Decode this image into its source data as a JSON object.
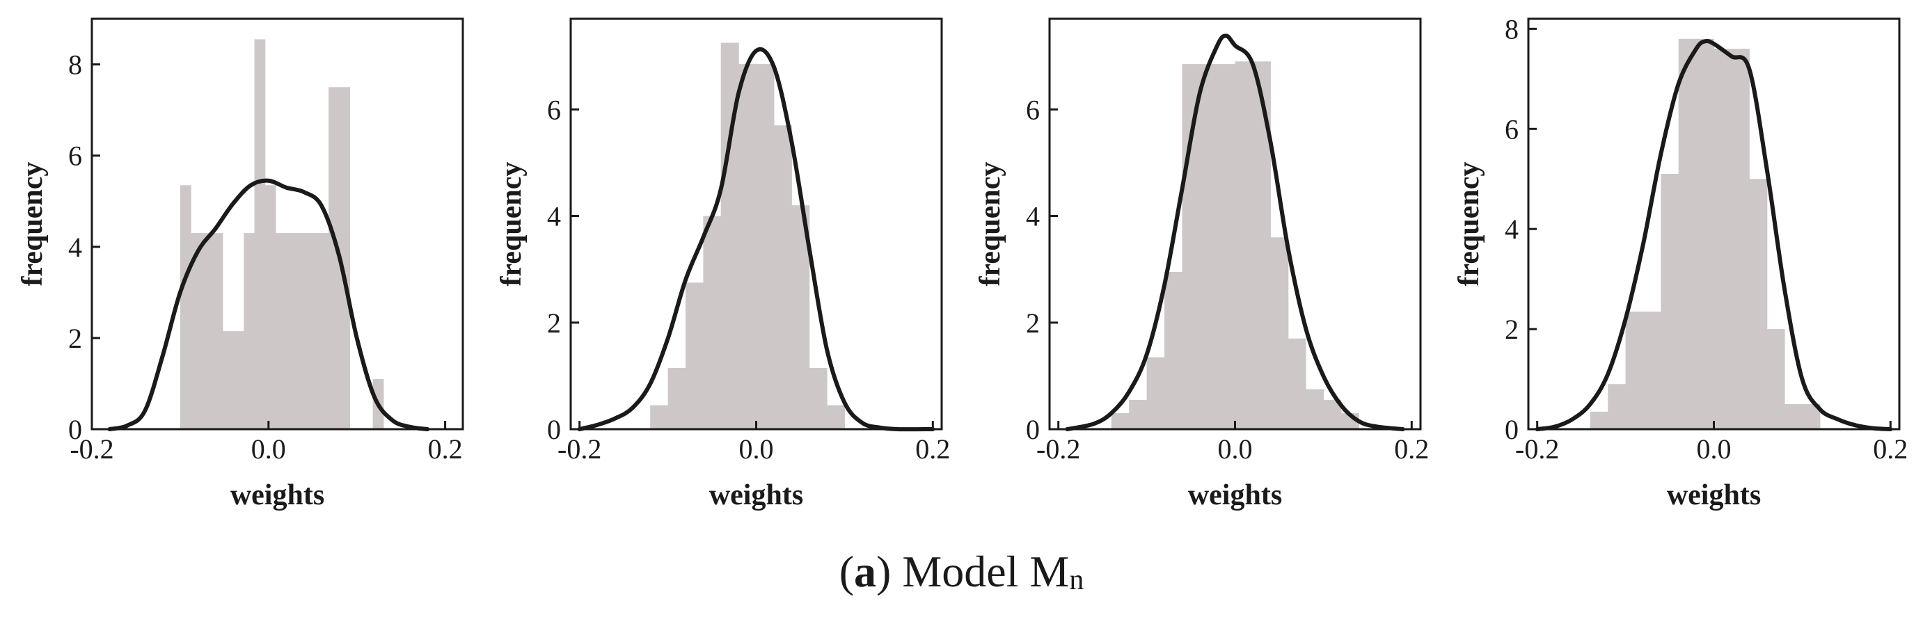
{
  "caption": {
    "paren_open": "(",
    "letter": "a",
    "paren_close": ")",
    "text": " Model M",
    "subscript": "n"
  },
  "colors": {
    "bar": "#cdc8c7",
    "curve": "#1a1a1a",
    "axis": "#1a1a1a"
  },
  "chart_data": [
    {
      "type": "bar",
      "title": "",
      "xlabel": "weights",
      "ylabel": "frequency",
      "xlim": [
        -0.2,
        0.22
      ],
      "ylim": [
        0,
        9
      ],
      "xticks": [
        -0.2,
        0.0,
        0.2
      ],
      "xtick_labels": [
        "-0.2",
        "0.0",
        "0.2"
      ],
      "yticks": [
        0,
        2,
        4,
        6,
        8
      ],
      "ytick_labels": [
        "0",
        "2",
        "4",
        "6",
        "8"
      ],
      "bins": [
        {
          "x0": -0.1,
          "x1": -0.088,
          "h": 5.35
        },
        {
          "x0": -0.088,
          "x1": -0.076,
          "h": 4.3
        },
        {
          "x0": -0.076,
          "x1": -0.064,
          "h": 4.3
        },
        {
          "x0": -0.064,
          "x1": -0.052,
          "h": 4.3
        },
        {
          "x0": -0.052,
          "x1": -0.04,
          "h": 2.15
        },
        {
          "x0": -0.04,
          "x1": -0.028,
          "h": 2.15
        },
        {
          "x0": -0.028,
          "x1": -0.016,
          "h": 4.3
        },
        {
          "x0": -0.016,
          "x1": -0.004,
          "h": 8.55
        },
        {
          "x0": -0.004,
          "x1": 0.008,
          "h": 5.35
        },
        {
          "x0": 0.008,
          "x1": 0.02,
          "h": 4.3
        },
        {
          "x0": 0.02,
          "x1": 0.032,
          "h": 4.3
        },
        {
          "x0": 0.032,
          "x1": 0.044,
          "h": 4.3
        },
        {
          "x0": 0.044,
          "x1": 0.056,
          "h": 4.3
        },
        {
          "x0": 0.056,
          "x1": 0.068,
          "h": 4.3
        },
        {
          "x0": 0.068,
          "x1": 0.08,
          "h": 7.5
        },
        {
          "x0": 0.08,
          "x1": 0.092,
          "h": 7.5
        },
        {
          "x0": 0.118,
          "x1": 0.13,
          "h": 1.1
        }
      ],
      "kde": [
        [
          -0.18,
          0
        ],
        [
          -0.16,
          0.08
        ],
        [
          -0.14,
          0.4
        ],
        [
          -0.12,
          1.6
        ],
        [
          -0.1,
          3.0
        ],
        [
          -0.08,
          3.9
        ],
        [
          -0.06,
          4.4
        ],
        [
          -0.04,
          4.95
        ],
        [
          -0.02,
          5.35
        ],
        [
          0.0,
          5.45
        ],
        [
          0.02,
          5.3
        ],
        [
          0.04,
          5.2
        ],
        [
          0.06,
          4.9
        ],
        [
          0.08,
          3.8
        ],
        [
          0.1,
          2.0
        ],
        [
          0.12,
          0.7
        ],
        [
          0.14,
          0.2
        ],
        [
          0.16,
          0.05
        ],
        [
          0.18,
          0
        ]
      ]
    },
    {
      "type": "bar",
      "title": "",
      "xlabel": "weights",
      "ylabel": "frequency",
      "xlim": [
        -0.21,
        0.21
      ],
      "ylim": [
        0,
        7.7
      ],
      "xticks": [
        -0.2,
        0.0,
        0.2
      ],
      "xtick_labels": [
        "-0.2",
        "0.0",
        "0.2"
      ],
      "yticks": [
        0,
        2,
        4,
        6
      ],
      "ytick_labels": [
        "0",
        "2",
        "4",
        "6"
      ],
      "bins": [
        {
          "x0": -0.12,
          "x1": -0.1,
          "h": 0.45
        },
        {
          "x0": -0.1,
          "x1": -0.08,
          "h": 1.15
        },
        {
          "x0": -0.08,
          "x1": -0.06,
          "h": 2.75
        },
        {
          "x0": -0.06,
          "x1": -0.04,
          "h": 4.0
        },
        {
          "x0": -0.04,
          "x1": -0.02,
          "h": 7.25
        },
        {
          "x0": -0.02,
          "x1": 0.0,
          "h": 6.85
        },
        {
          "x0": 0.0,
          "x1": 0.02,
          "h": 6.85
        },
        {
          "x0": 0.02,
          "x1": 0.04,
          "h": 5.7
        },
        {
          "x0": 0.04,
          "x1": 0.06,
          "h": 4.2
        },
        {
          "x0": 0.06,
          "x1": 0.08,
          "h": 1.15
        },
        {
          "x0": 0.08,
          "x1": 0.1,
          "h": 0.45
        }
      ],
      "kde": [
        [
          -0.2,
          0
        ],
        [
          -0.18,
          0.08
        ],
        [
          -0.16,
          0.2
        ],
        [
          -0.14,
          0.4
        ],
        [
          -0.12,
          0.85
        ],
        [
          -0.1,
          1.7
        ],
        [
          -0.08,
          2.8
        ],
        [
          -0.06,
          3.6
        ],
        [
          -0.04,
          4.5
        ],
        [
          -0.02,
          6.3
        ],
        [
          0.0,
          7.1
        ],
        [
          0.02,
          6.8
        ],
        [
          0.04,
          5.4
        ],
        [
          0.06,
          3.4
        ],
        [
          0.08,
          1.5
        ],
        [
          0.1,
          0.5
        ],
        [
          0.12,
          0.12
        ],
        [
          0.14,
          0.03
        ],
        [
          0.16,
          0
        ],
        [
          0.2,
          0
        ]
      ]
    },
    {
      "type": "bar",
      "title": "",
      "xlabel": "weights",
      "ylabel": "frequency",
      "xlim": [
        -0.21,
        0.21
      ],
      "ylim": [
        0,
        7.7
      ],
      "xticks": [
        -0.2,
        0.0,
        0.2
      ],
      "xtick_labels": [
        "-0.2",
        "0.0",
        "0.2"
      ],
      "yticks": [
        0,
        2,
        4,
        6
      ],
      "ytick_labels": [
        "0",
        "2",
        "4",
        "6"
      ],
      "bins": [
        {
          "x0": -0.14,
          "x1": -0.12,
          "h": 0.3
        },
        {
          "x0": -0.12,
          "x1": -0.1,
          "h": 0.55
        },
        {
          "x0": -0.1,
          "x1": -0.08,
          "h": 1.35
        },
        {
          "x0": -0.08,
          "x1": -0.06,
          "h": 2.95
        },
        {
          "x0": -0.06,
          "x1": -0.04,
          "h": 6.85
        },
        {
          "x0": -0.04,
          "x1": -0.02,
          "h": 6.85
        },
        {
          "x0": -0.02,
          "x1": 0.0,
          "h": 6.85
        },
        {
          "x0": 0.0,
          "x1": 0.02,
          "h": 6.9
        },
        {
          "x0": 0.02,
          "x1": 0.04,
          "h": 6.9
        },
        {
          "x0": 0.04,
          "x1": 0.06,
          "h": 3.6
        },
        {
          "x0": 0.06,
          "x1": 0.08,
          "h": 1.7
        },
        {
          "x0": 0.08,
          "x1": 0.1,
          "h": 0.75
        },
        {
          "x0": 0.1,
          "x1": 0.12,
          "h": 0.55
        },
        {
          "x0": 0.12,
          "x1": 0.14,
          "h": 0.3
        }
      ],
      "kde": [
        [
          -0.19,
          0
        ],
        [
          -0.16,
          0.1
        ],
        [
          -0.14,
          0.3
        ],
        [
          -0.12,
          0.7
        ],
        [
          -0.1,
          1.4
        ],
        [
          -0.08,
          2.7
        ],
        [
          -0.06,
          4.5
        ],
        [
          -0.04,
          6.3
        ],
        [
          -0.02,
          7.2
        ],
        [
          -0.01,
          7.38
        ],
        [
          0.0,
          7.2
        ],
        [
          0.02,
          6.85
        ],
        [
          0.04,
          5.4
        ],
        [
          0.06,
          3.4
        ],
        [
          0.08,
          1.9
        ],
        [
          0.1,
          1.0
        ],
        [
          0.12,
          0.45
        ],
        [
          0.14,
          0.15
        ],
        [
          0.16,
          0.05
        ],
        [
          0.19,
          0
        ]
      ]
    },
    {
      "type": "bar",
      "title": "",
      "xlabel": "weights",
      "ylabel": "frequency",
      "xlim": [
        -0.21,
        0.21
      ],
      "ylim": [
        0,
        8.2
      ],
      "xticks": [
        -0.2,
        0.0,
        0.2
      ],
      "xtick_labels": [
        "-0.2",
        "0.0",
        "0.2"
      ],
      "yticks": [
        0,
        2,
        4,
        6,
        8
      ],
      "ytick_labels": [
        "0",
        "2",
        "4",
        "6",
        "8"
      ],
      "bins": [
        {
          "x0": -0.14,
          "x1": -0.12,
          "h": 0.35
        },
        {
          "x0": -0.12,
          "x1": -0.1,
          "h": 0.9
        },
        {
          "x0": -0.1,
          "x1": -0.08,
          "h": 2.35
        },
        {
          "x0": -0.08,
          "x1": -0.06,
          "h": 2.35
        },
        {
          "x0": -0.06,
          "x1": -0.04,
          "h": 5.1
        },
        {
          "x0": -0.04,
          "x1": -0.02,
          "h": 7.8
        },
        {
          "x0": -0.02,
          "x1": 0.0,
          "h": 7.8
        },
        {
          "x0": 0.0,
          "x1": 0.02,
          "h": 7.6
        },
        {
          "x0": 0.02,
          "x1": 0.04,
          "h": 7.6
        },
        {
          "x0": 0.04,
          "x1": 0.06,
          "h": 5.0
        },
        {
          "x0": 0.06,
          "x1": 0.08,
          "h": 2.0
        },
        {
          "x0": 0.08,
          "x1": 0.1,
          "h": 0.5
        },
        {
          "x0": 0.1,
          "x1": 0.12,
          "h": 0.5
        }
      ],
      "kde": [
        [
          -0.2,
          0
        ],
        [
          -0.18,
          0.05
        ],
        [
          -0.16,
          0.2
        ],
        [
          -0.14,
          0.5
        ],
        [
          -0.12,
          1.1
        ],
        [
          -0.1,
          2.2
        ],
        [
          -0.08,
          3.7
        ],
        [
          -0.06,
          5.5
        ],
        [
          -0.04,
          6.9
        ],
        [
          -0.02,
          7.6
        ],
        [
          -0.01,
          7.75
        ],
        [
          0.0,
          7.7
        ],
        [
          0.02,
          7.45
        ],
        [
          0.04,
          7.2
        ],
        [
          0.06,
          5.2
        ],
        [
          0.08,
          2.8
        ],
        [
          0.1,
          1.0
        ],
        [
          0.12,
          0.4
        ],
        [
          0.14,
          0.2
        ],
        [
          0.16,
          0.08
        ],
        [
          0.18,
          0.02
        ],
        [
          0.2,
          0
        ]
      ]
    }
  ]
}
